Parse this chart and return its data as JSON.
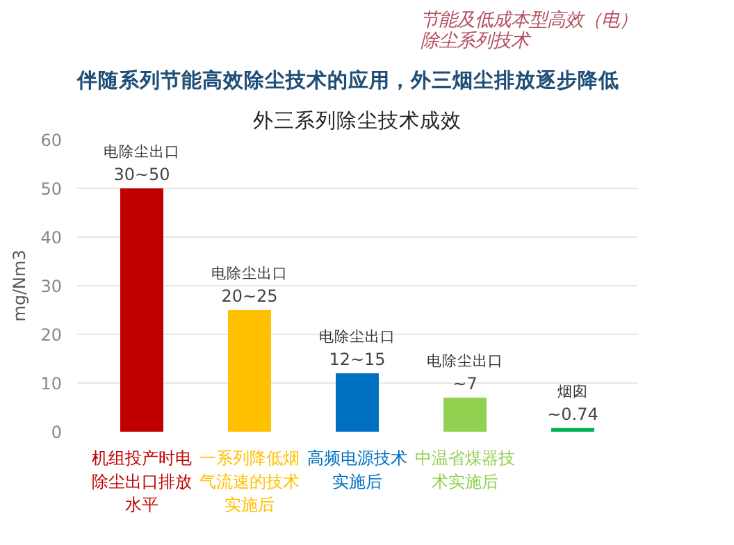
{
  "chart_data": {
    "type": "bar",
    "title": "伴随系列节能高效除尘技术的应用，外三烟尘排放逐步降低",
    "subtitle": "外三系列除尘技术成效",
    "ylabel": "mg/Nm3",
    "categories": [
      "机组投产时电除尘出口排放水平",
      "一系列降低烟气流速的技术实施后",
      "高频电源技术实施后",
      "中温省煤器技术实施后",
      null
    ],
    "values": [
      50,
      25,
      12,
      7,
      0.74
    ],
    "colors": [
      "#c00000",
      "#ffc000",
      "#0070c0",
      "#92d050",
      "#00b050"
    ],
    "value_labels": [
      "30~50",
      "20~25",
      "12~15",
      "~7",
      "~0.74"
    ],
    "annotations": [
      "节能及低成本型高效（电）除尘系列技术",
      "电除尘出口",
      "电除尘出口",
      "电除尘出口",
      "电除尘出口",
      "烟囱"
    ],
    "ylim": [
      0,
      60
    ],
    "yticks": [
      0,
      10,
      20,
      30,
      40,
      50,
      60
    ],
    "grid": "y"
  }
}
